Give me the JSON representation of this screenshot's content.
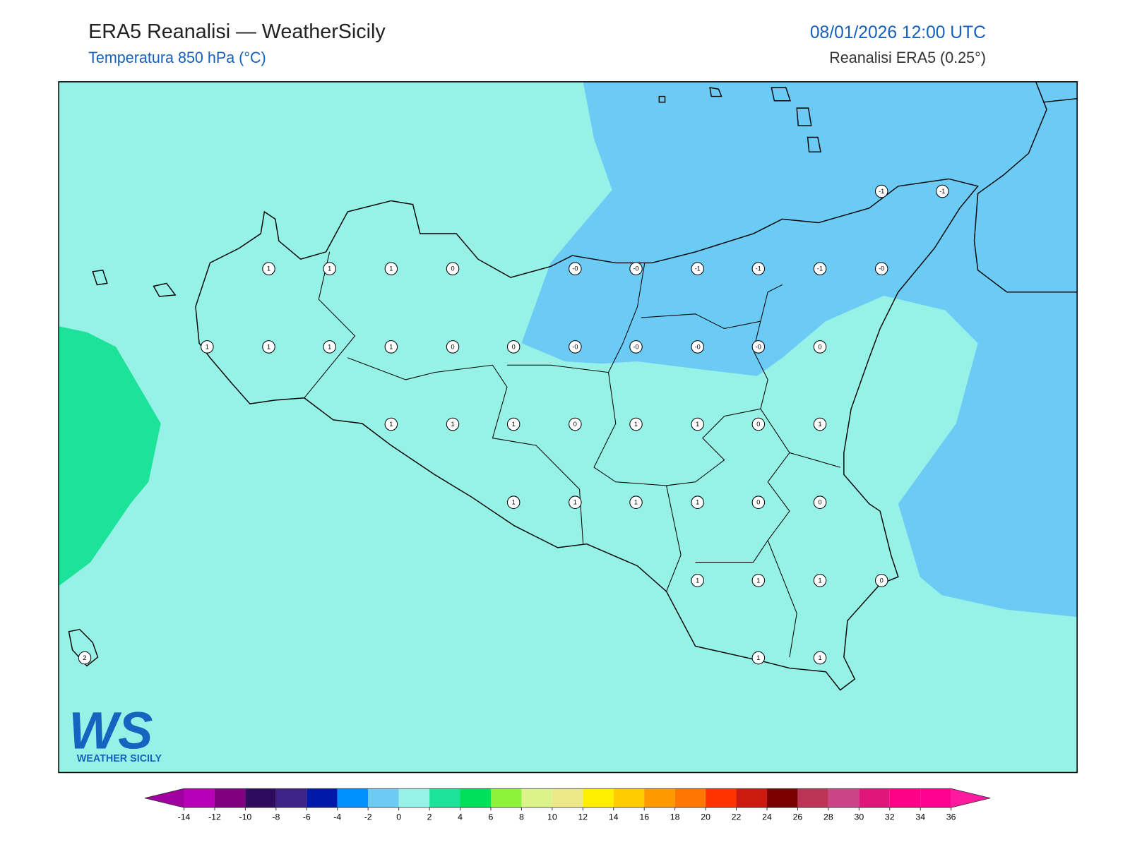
{
  "header": {
    "title": "ERA5 Reanalisi — WeatherSicily",
    "subtitle": "Temperatura 850 hPa (°C)",
    "datetime": "08/01/2026 12:00 UTC",
    "source": "Reanalisi ERA5 (0.25°)"
  },
  "logo": {
    "mark": "WS",
    "caption": "WEATHER SICILY"
  },
  "map": {
    "points": [
      "-1",
      "-1",
      "1",
      "1",
      "1",
      "0",
      "-0",
      "-0",
      "-1",
      "-1",
      "-1",
      "-0",
      "1",
      "1",
      "1",
      "1",
      "0",
      "0",
      "-0",
      "-0",
      "-0",
      "-0",
      "0",
      "1",
      "1",
      "1",
      "0",
      "1",
      "1",
      "0",
      "1",
      "1",
      "1",
      "1",
      "1",
      "0",
      "0",
      "1",
      "1",
      "1",
      "0",
      "2",
      "1",
      "1"
    ]
  },
  "colorbar": {
    "ticks": [
      -14,
      -12,
      -10,
      -8,
      -6,
      -4,
      -2,
      0,
      2,
      4,
      6,
      8,
      10,
      12,
      14,
      16,
      18,
      20,
      22,
      24,
      26,
      28,
      30,
      32,
      34,
      36
    ],
    "colors": [
      "#b800b8",
      "#800080",
      "#2e0b5c",
      "#3d2388",
      "#0019a8",
      "#0090ff",
      "#6ccbf5",
      "#96f2e6",
      "#1de39a",
      "#00e05a",
      "#8cf23c",
      "#dcf28a",
      "#ece88a",
      "#ffee00",
      "#ffcc00",
      "#ff9900",
      "#ff7700",
      "#ff3300",
      "#cc1a11",
      "#7a0000",
      "#bb3355",
      "#cc4488",
      "#e0177a",
      "#ff0088",
      "#ff0090"
    ],
    "under_color": "#a000a0",
    "over_color": "#ff1aa0"
  }
}
